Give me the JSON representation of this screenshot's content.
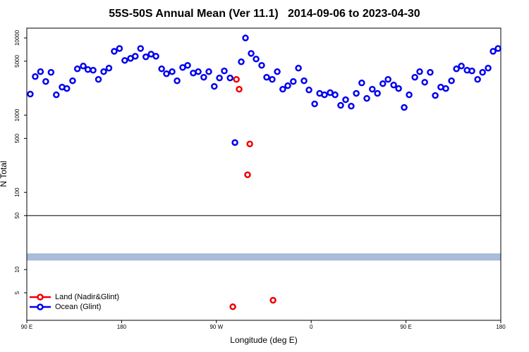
{
  "chart_data": {
    "type": "scatter",
    "title": "55S-50S Annual Mean (Ver 11.1)   2014-09-06 to 2023-04-30",
    "x_label": "Longitude (deg E)",
    "y_label": "N Total",
    "log_y": true,
    "xlim": [
      90,
      540
    ],
    "ylim": [
      2.2,
      13400
    ],
    "xticks": [
      {
        "value": 90,
        "label": "90 E"
      },
      180,
      {
        "value": 270,
        "label": "90 W"
      },
      {
        "value": 360,
        "label": "0"
      },
      {
        "value": 450,
        "label": "90 E"
      },
      {
        "value": 540,
        "label": "180"
      }
    ],
    "yticks": [
      5,
      10,
      50,
      100,
      500,
      1000,
      5000,
      10000
    ],
    "hline": 50,
    "band": {
      "range": [
        13.1,
        16.2
      ],
      "color": "#a9bcd9"
    },
    "legend": "bottom-left",
    "series": [
      {
        "name": "Land (Nadir&Glint)",
        "color": "#ee0000",
        "x": [
          289,
          291.6,
          301.7,
          299.6,
          285.6,
          323.8
        ],
        "values": [
          2910,
          2170,
          424,
          169,
          3.3,
          4.0
        ]
      },
      {
        "name": "Ocean (Glint)",
        "color": "#0000ee",
        "x": [
          93.3,
          98,
          103,
          108,
          113,
          118,
          123.5,
          128,
          133.5,
          138,
          143.6,
          148,
          153,
          158,
          163,
          168,
          173,
          178,
          183,
          188.5,
          193,
          198,
          203,
          208,
          212.6,
          218,
          222.6,
          228,
          232.7,
          238,
          242.7,
          248,
          252.8,
          258,
          262.8,
          268,
          272.9,
          277.5,
          283,
          287.6,
          293.6,
          297.6,
          303,
          307.7,
          313,
          317.7,
          323,
          327.8,
          333,
          337.8,
          343,
          347.9,
          353.2,
          357.9,
          363.3,
          368,
          372.6,
          378,
          382.7,
          388,
          392.7,
          398,
          402.8,
          408,
          412.8,
          418,
          422.9,
          428,
          433,
          438.3,
          443,
          448.3,
          453,
          458.4,
          463,
          467.8,
          473,
          477.8,
          483,
          487.8,
          493.2,
          497.9,
          502.6,
          508,
          512.6,
          518,
          522.7,
          528,
          532.7,
          537.4
        ],
        "values": [
          1875,
          3162,
          3660,
          2730,
          3590,
          1835,
          2310,
          2215,
          2790,
          3980,
          4330,
          3900,
          3820,
          2910,
          3660,
          4070,
          6720,
          7310,
          5120,
          5450,
          5800,
          7310,
          5690,
          6180,
          5800,
          3980,
          3440,
          3660,
          2790,
          4150,
          4420,
          3510,
          3660,
          3100,
          3660,
          2360,
          3035,
          3740,
          3035,
          442,
          4910,
          10000,
          6310,
          5340,
          4420,
          3100,
          2910,
          3660,
          2170,
          2410,
          2730,
          4070,
          2790,
          2120,
          1400,
          1915,
          1835,
          1955,
          1835,
          1340,
          1585,
          1310,
          1915,
          2620,
          1650,
          2170,
          1915,
          2560,
          2910,
          2460,
          2215,
          1260,
          1835,
          3100,
          3660,
          2670,
          3590,
          1800,
          2310,
          2215,
          2790,
          3980,
          4330,
          3820,
          3740,
          2910,
          3590,
          4070,
          6720,
          7310
        ]
      }
    ]
  }
}
